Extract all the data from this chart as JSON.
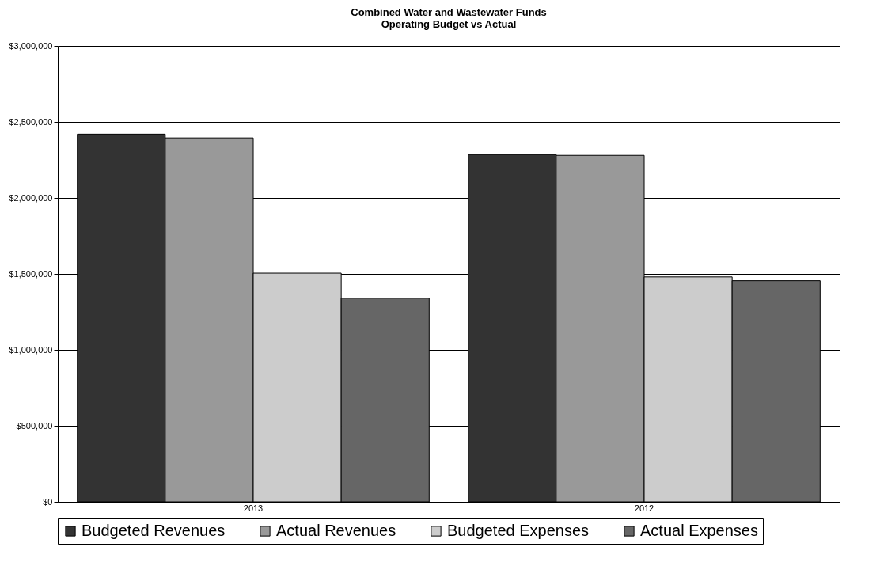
{
  "chart_data": {
    "type": "bar",
    "title": [
      "Combined Water and Wastewater Funds",
      "Operating Budget vs Actual"
    ],
    "categories": [
      "2013",
      "2012"
    ],
    "series": [
      {
        "name": "Budgeted Revenues",
        "color": "#333333",
        "values": [
          2420000,
          2285000
        ]
      },
      {
        "name": "Actual Revenues",
        "color": "#999999",
        "values": [
          2395000,
          2280000
        ]
      },
      {
        "name": "Budgeted Expenses",
        "color": "#cccccc",
        "values": [
          1505000,
          1480000
        ]
      },
      {
        "name": "Actual Expenses",
        "color": "#666666",
        "values": [
          1340000,
          1455000
        ]
      }
    ],
    "ylim": [
      0,
      3000000
    ],
    "yticks": [
      {
        "value": 0,
        "label": "$0"
      },
      {
        "value": 500000,
        "label": "$500,000"
      },
      {
        "value": 1000000,
        "label": "$1,000,000"
      },
      {
        "value": 1500000,
        "label": "$1,500,000"
      },
      {
        "value": 2000000,
        "label": "$2,000,000"
      },
      {
        "value": 2500000,
        "label": "$2,500,000"
      },
      {
        "value": 3000000,
        "label": "$3,000,000"
      }
    ],
    "grid": "y",
    "legend": "bottom"
  }
}
